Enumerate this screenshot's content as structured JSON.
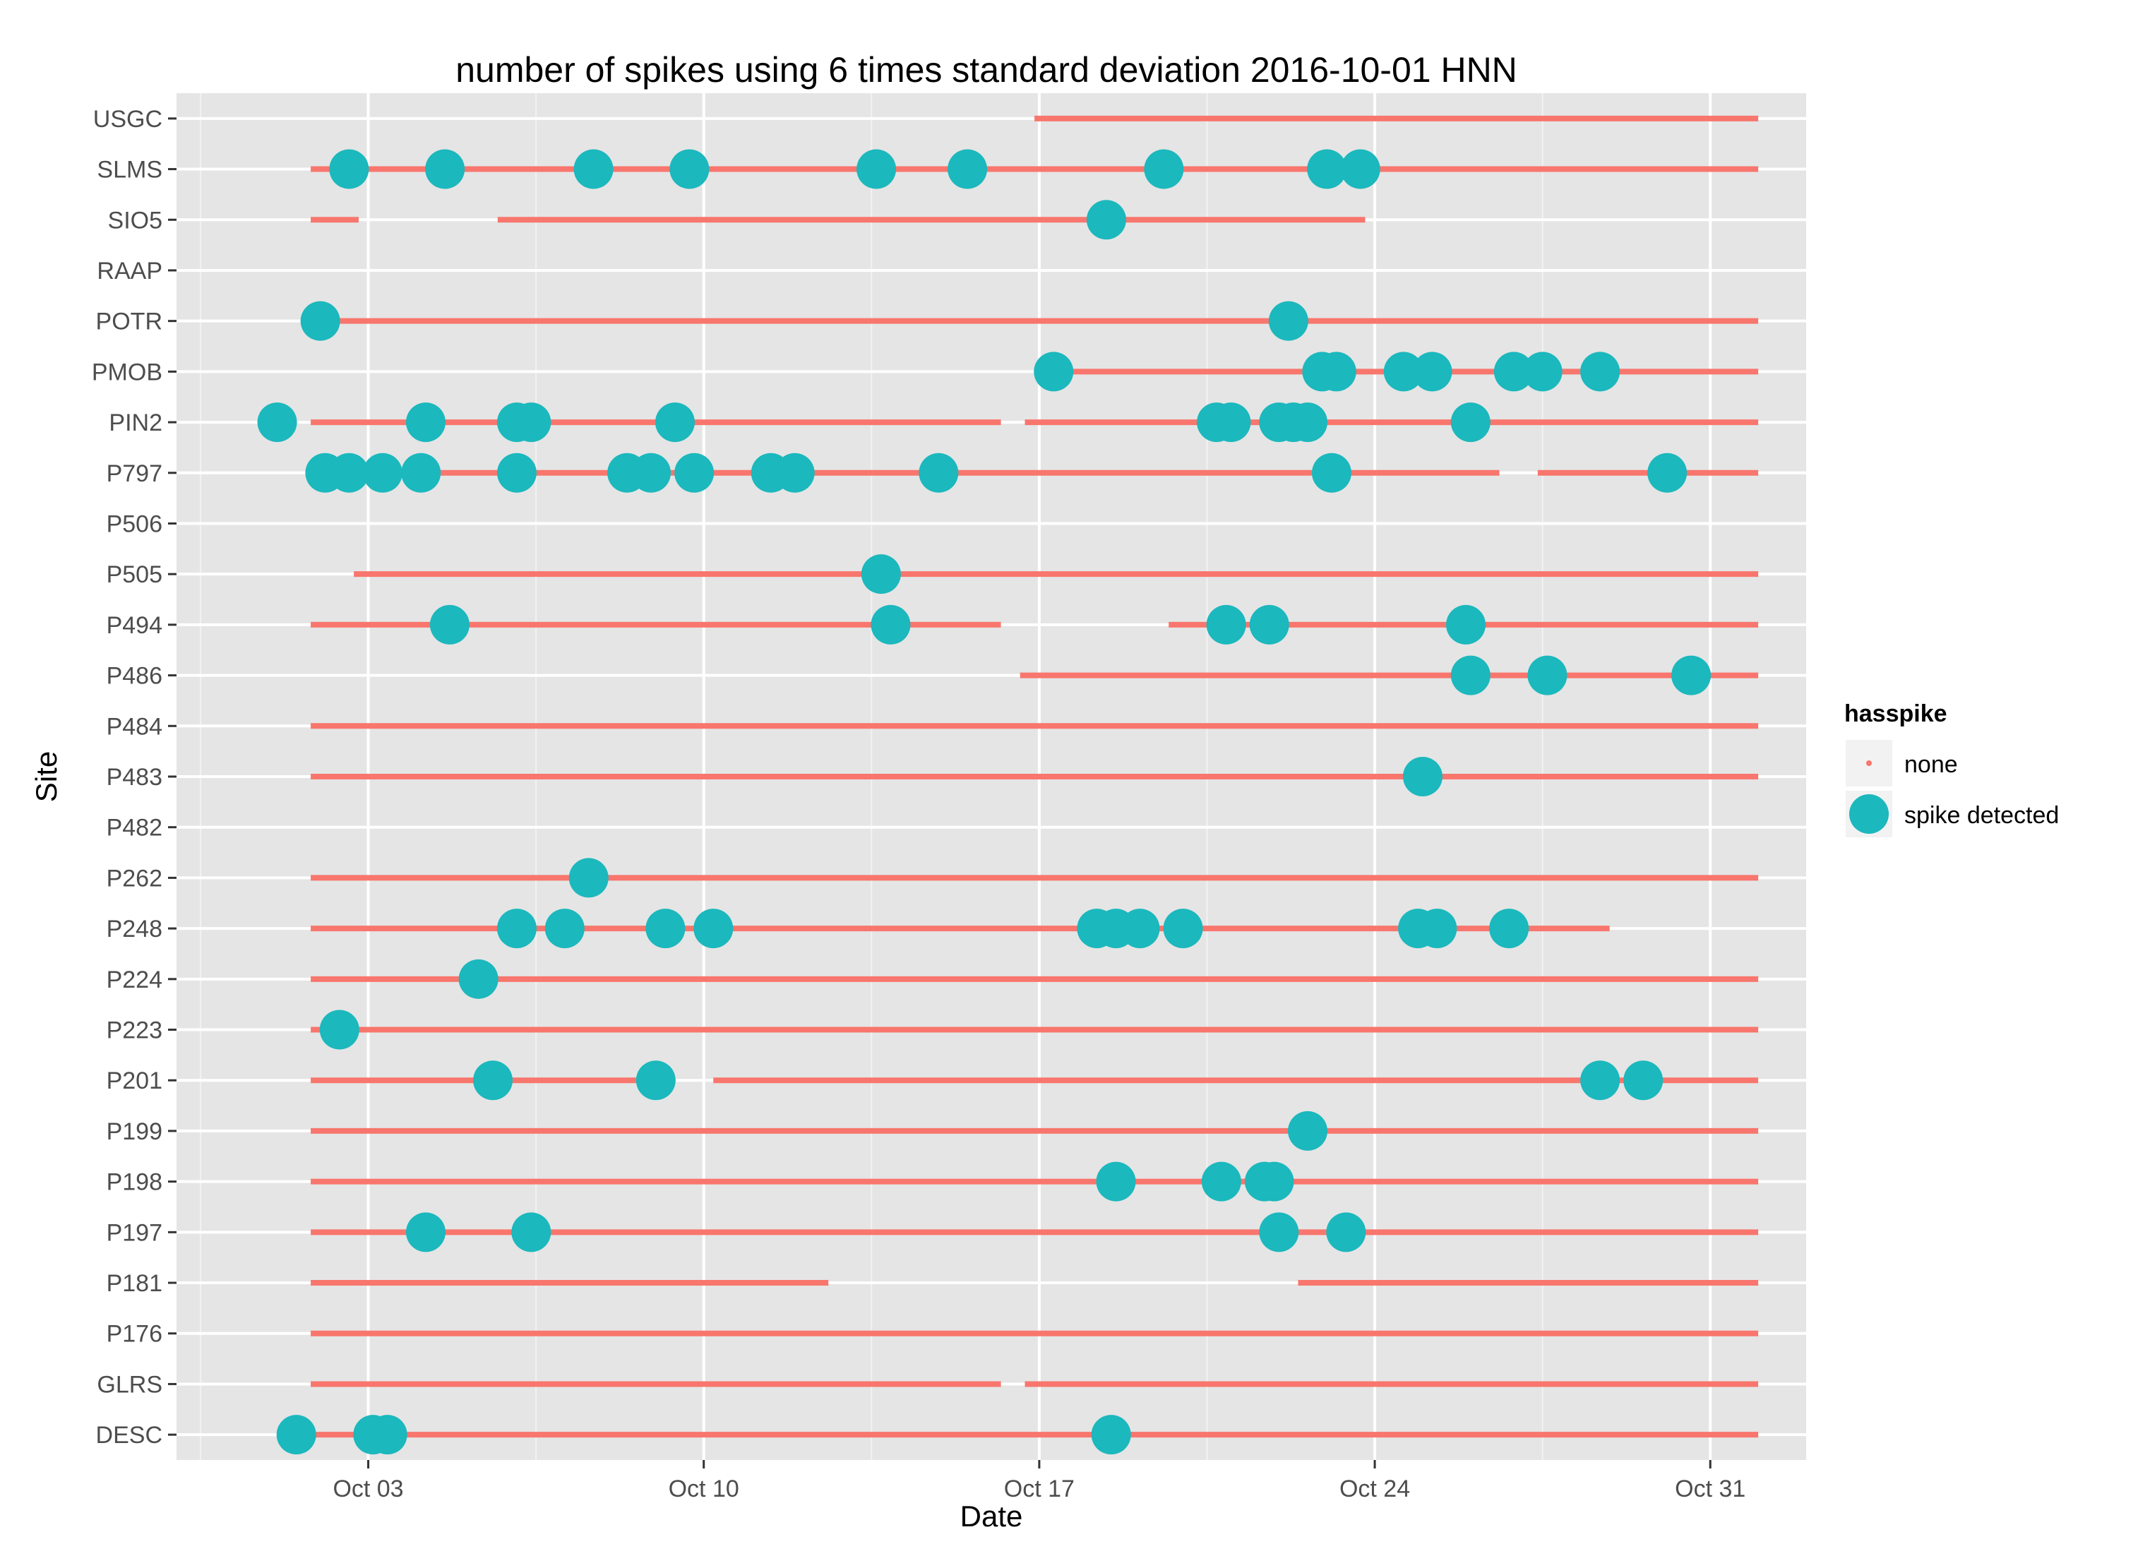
{
  "chart_data": {
    "type": "scatter",
    "title": "number of spikes using  6 times standard deviation 2016-10-01 HNN",
    "xlabel": "Date",
    "ylabel": "Site",
    "x_axis": {
      "min": "2016-09-29",
      "max": "2016-11-02",
      "ticks": [
        "Oct 03",
        "Oct 10",
        "Oct 17",
        "Oct 24",
        "Oct 31"
      ],
      "tick_dates": [
        "2016-10-03",
        "2016-10-10",
        "2016-10-17",
        "2016-10-24",
        "2016-10-31"
      ]
    },
    "sites": [
      "DESC",
      "GLRS",
      "P176",
      "P181",
      "P197",
      "P198",
      "P199",
      "P201",
      "P223",
      "P224",
      "P248",
      "P262",
      "P482",
      "P483",
      "P484",
      "P486",
      "P494",
      "P505",
      "P506",
      "P797",
      "PIN2",
      "PMOB",
      "POTR",
      "RAAP",
      "SIO5",
      "SLMS",
      "USGC"
    ],
    "legend": {
      "title": "hasspike",
      "entries": [
        "none",
        "spike detected"
      ],
      "placement": "right"
    },
    "colors": {
      "none": "#F8766D",
      "spike": "#1BB8BD",
      "panel": "#E5E5E5",
      "grid": "#FFFFFF"
    },
    "series": [
      {
        "name": "none",
        "coverage": [
          {
            "site": "USGC",
            "ranges": [
              [
                "2016-10-16.9",
                "2016-11-01"
              ]
            ]
          },
          {
            "site": "SLMS",
            "ranges": [
              [
                "2016-10-01.8",
                "2016-11-01"
              ]
            ]
          },
          {
            "site": "SIO5",
            "ranges": [
              [
                "2016-10-01.8",
                "2016-10-02.8"
              ],
              [
                "2016-10-05.7",
                "2016-10-23.8"
              ]
            ]
          },
          {
            "site": "POTR",
            "ranges": [
              [
                "2016-10-01.8",
                "2016-11-01"
              ]
            ]
          },
          {
            "site": "PMOB",
            "ranges": [
              [
                "2016-10-16.9",
                "2016-11-01"
              ]
            ]
          },
          {
            "site": "PIN2",
            "ranges": [
              [
                "2016-10-01.8",
                "2016-10-16.2"
              ],
              [
                "2016-10-16.7",
                "2016-11-01"
              ]
            ]
          },
          {
            "site": "P797",
            "ranges": [
              [
                "2016-10-01.8",
                "2016-10-26.6"
              ],
              [
                "2016-10-27.4",
                "2016-11-01"
              ]
            ]
          },
          {
            "site": "P505",
            "ranges": [
              [
                "2016-10-02.7",
                "2016-11-01"
              ]
            ]
          },
          {
            "site": "P494",
            "ranges": [
              [
                "2016-10-01.8",
                "2016-10-16.2"
              ],
              [
                "2016-10-19.7",
                "2016-11-01"
              ]
            ]
          },
          {
            "site": "P486",
            "ranges": [
              [
                "2016-10-16.6",
                "2016-11-01"
              ]
            ]
          },
          {
            "site": "P484",
            "ranges": [
              [
                "2016-10-01.8",
                "2016-11-01"
              ]
            ]
          },
          {
            "site": "P483",
            "ranges": [
              [
                "2016-10-01.8",
                "2016-11-01"
              ]
            ]
          },
          {
            "site": "P262",
            "ranges": [
              [
                "2016-10-01.8",
                "2016-11-01"
              ]
            ]
          },
          {
            "site": "P248",
            "ranges": [
              [
                "2016-10-01.8",
                "2016-10-28.9"
              ]
            ]
          },
          {
            "site": "P224",
            "ranges": [
              [
                "2016-10-01.8",
                "2016-11-01"
              ]
            ]
          },
          {
            "site": "P223",
            "ranges": [
              [
                "2016-10-01.8",
                "2016-11-01"
              ]
            ]
          },
          {
            "site": "P201",
            "ranges": [
              [
                "2016-10-01.8",
                "2016-10-09.2"
              ],
              [
                "2016-10-10.2",
                "2016-11-01"
              ]
            ]
          },
          {
            "site": "P199",
            "ranges": [
              [
                "2016-10-01.8",
                "2016-11-01"
              ]
            ]
          },
          {
            "site": "P198",
            "ranges": [
              [
                "2016-10-01.8",
                "2016-11-01"
              ]
            ]
          },
          {
            "site": "P197",
            "ranges": [
              [
                "2016-10-01.8",
                "2016-11-01"
              ]
            ]
          },
          {
            "site": "P181",
            "ranges": [
              [
                "2016-10-01.8",
                "2016-10-12.6"
              ],
              [
                "2016-10-22.4",
                "2016-11-01"
              ]
            ]
          },
          {
            "site": "P176",
            "ranges": [
              [
                "2016-10-01.8",
                "2016-11-01"
              ]
            ]
          },
          {
            "site": "GLRS",
            "ranges": [
              [
                "2016-10-01.8",
                "2016-10-16.2"
              ],
              [
                "2016-10-16.7",
                "2016-11-01"
              ]
            ]
          },
          {
            "site": "DESC",
            "ranges": [
              [
                "2016-10-01.8",
                "2016-11-01"
              ]
            ]
          }
        ]
      },
      {
        "name": "spike detected",
        "points": [
          {
            "site": "SLMS",
            "x": [
              "2016-10-02.6",
              "2016-10-04.6",
              "2016-10-07.7",
              "2016-10-09.7",
              "2016-10-13.6",
              "2016-10-15.5",
              "2016-10-19.6",
              "2016-10-23.0",
              "2016-10-23.7"
            ]
          },
          {
            "site": "SIO5",
            "x": [
              "2016-10-18.4"
            ]
          },
          {
            "site": "POTR",
            "x": [
              "2016-10-02.0",
              "2016-10-22.2"
            ]
          },
          {
            "site": "PMOB",
            "x": [
              "2016-10-17.3",
              "2016-10-22.9",
              "2016-10-23.2",
              "2016-10-24.6",
              "2016-10-25.2",
              "2016-10-26.9",
              "2016-10-27.5",
              "2016-10-28.7"
            ]
          },
          {
            "site": "PIN2",
            "x": [
              "2016-10-01.1",
              "2016-10-04.2",
              "2016-10-06.1",
              "2016-10-06.4",
              "2016-10-09.4",
              "2016-10-20.7",
              "2016-10-21.0",
              "2016-10-22.0",
              "2016-10-22.3",
              "2016-10-22.6",
              "2016-10-26.0"
            ]
          },
          {
            "site": "P797",
            "x": [
              "2016-10-02.1",
              "2016-10-02.6",
              "2016-10-03.3",
              "2016-10-04.1",
              "2016-10-06.1",
              "2016-10-08.4",
              "2016-10-08.9",
              "2016-10-09.8",
              "2016-10-11.4",
              "2016-10-11.9",
              "2016-10-14.9",
              "2016-10-23.1",
              "2016-10-30.1"
            ]
          },
          {
            "site": "P505",
            "x": [
              "2016-10-13.7"
            ]
          },
          {
            "site": "P494",
            "x": [
              "2016-10-04.7",
              "2016-10-13.9",
              "2016-10-20.9",
              "2016-10-21.8",
              "2016-10-25.9"
            ]
          },
          {
            "site": "P486",
            "x": [
              "2016-10-26.0",
              "2016-10-27.6",
              "2016-10-30.6"
            ]
          },
          {
            "site": "P483",
            "x": [
              "2016-10-25.0"
            ]
          },
          {
            "site": "P262",
            "x": [
              "2016-10-07.6"
            ]
          },
          {
            "site": "P248",
            "x": [
              "2016-10-06.1",
              "2016-10-07.1",
              "2016-10-09.2",
              "2016-10-10.2",
              "2016-10-18.2",
              "2016-10-18.6",
              "2016-10-19.1",
              "2016-10-20.0",
              "2016-10-24.9",
              "2016-10-25.3",
              "2016-10-26.8"
            ]
          },
          {
            "site": "P224",
            "x": [
              "2016-10-05.3"
            ]
          },
          {
            "site": "P223",
            "x": [
              "2016-10-02.4"
            ]
          },
          {
            "site": "P201",
            "x": [
              "2016-10-05.6",
              "2016-10-09.0",
              "2016-10-28.7",
              "2016-10-29.6"
            ]
          },
          {
            "site": "P199",
            "x": [
              "2016-10-22.6"
            ]
          },
          {
            "site": "P198",
            "x": [
              "2016-10-18.6",
              "2016-10-20.8",
              "2016-10-21.7",
              "2016-10-21.9"
            ]
          },
          {
            "site": "P197",
            "x": [
              "2016-10-04.2",
              "2016-10-06.4",
              "2016-10-22.0",
              "2016-10-23.4"
            ]
          },
          {
            "site": "DESC",
            "x": [
              "2016-10-01.5",
              "2016-10-03.1",
              "2016-10-03.4",
              "2016-10-18.5"
            ]
          }
        ]
      }
    ]
  }
}
